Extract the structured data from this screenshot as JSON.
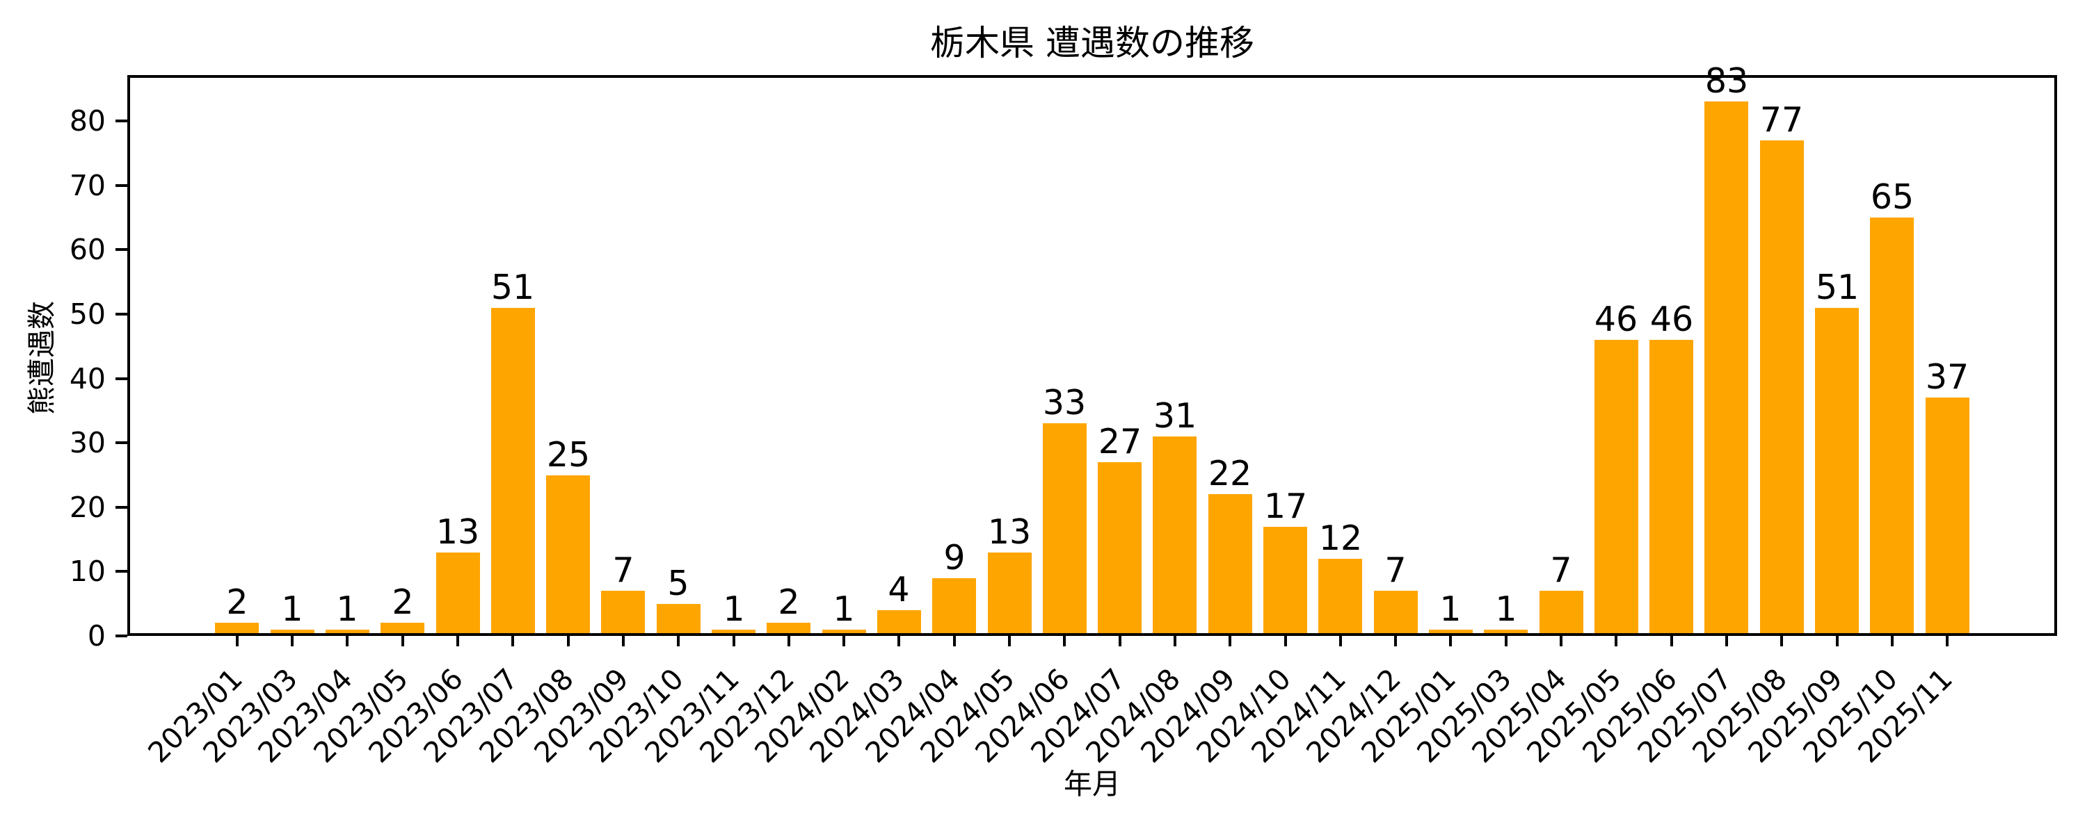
{
  "chart_data": {
    "type": "bar",
    "title": "栃木県 遭遇数の推移",
    "xlabel": "年月",
    "ylabel": "熊遭遇数",
    "categories": [
      "2023/01",
      "2023/03",
      "2023/04",
      "2023/05",
      "2023/06",
      "2023/07",
      "2023/08",
      "2023/09",
      "2023/10",
      "2023/11",
      "2023/12",
      "2024/02",
      "2024/03",
      "2024/04",
      "2024/05",
      "2024/06",
      "2024/07",
      "2024/08",
      "2024/09",
      "2024/10",
      "2024/11",
      "2024/12",
      "2025/01",
      "2025/03",
      "2025/04",
      "2025/05",
      "2025/06",
      "2025/07",
      "2025/08",
      "2025/09",
      "2025/10",
      "2025/11"
    ],
    "values": [
      2,
      1,
      1,
      2,
      13,
      51,
      25,
      7,
      5,
      1,
      2,
      1,
      4,
      9,
      13,
      33,
      27,
      31,
      22,
      17,
      12,
      7,
      1,
      1,
      7,
      46,
      46,
      83,
      77,
      51,
      65,
      37
    ],
    "bar_color": "#FFA500",
    "text_color": "#000000",
    "background_color": "#FFFFFF",
    "ylim": [
      0,
      87.15
    ],
    "yticks": [
      0,
      10,
      20,
      30,
      40,
      50,
      60,
      70,
      80
    ],
    "xtick_rotation_deg": 45,
    "grid": false,
    "legend_position": "none",
    "bar_value_labels": true
  }
}
